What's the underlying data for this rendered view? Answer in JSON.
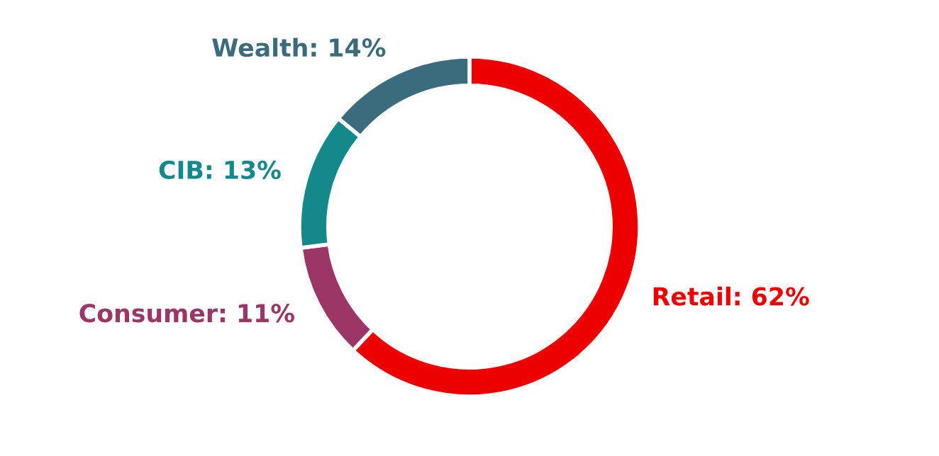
{
  "chart_data": {
    "type": "donut",
    "categories": [
      "Retail",
      "Consumer",
      "CIB",
      "Wealth"
    ],
    "values": [
      62,
      11,
      13,
      14
    ],
    "value_labels": [
      "62%",
      "11%",
      "13%",
      "14%"
    ],
    "colors": [
      "#ec0000",
      "#9c3667",
      "#13898c",
      "#3b6c7e"
    ]
  }
}
